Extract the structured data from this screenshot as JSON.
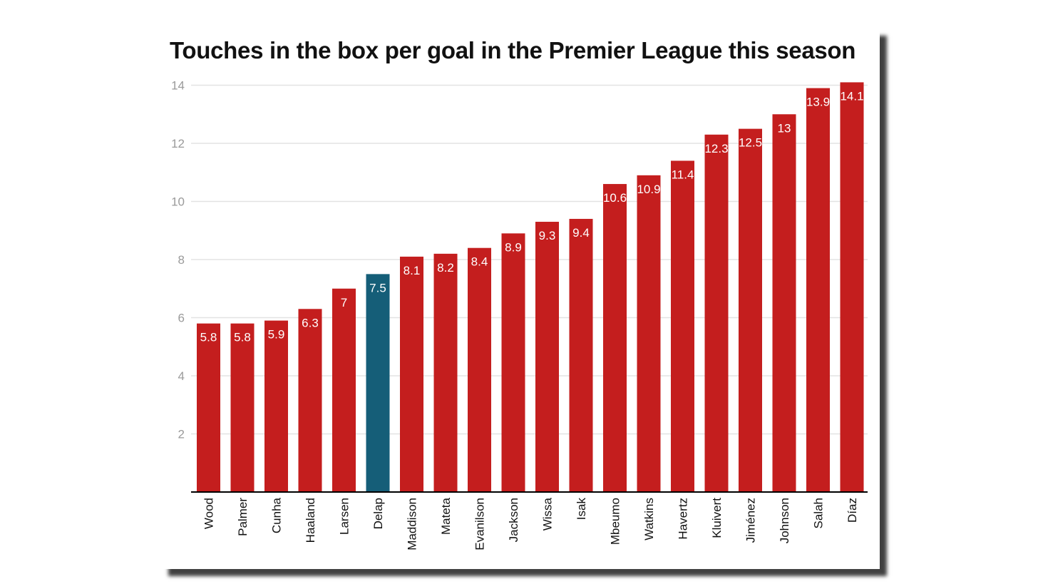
{
  "chart_data": {
    "type": "bar",
    "title": "Touches in the box per goal in the Premier League this season",
    "xlabel": "",
    "ylabel": "",
    "categories": [
      "Wood",
      "Palmer",
      "Cunha",
      "Haaland",
      "Larsen",
      "Delap",
      "Maddison",
      "Mateta",
      "Evanilson",
      "Jackson",
      "Wissa",
      "Isak",
      "Mbeumo",
      "Watkins",
      "Havertz",
      "Kluivert",
      "Jiménez",
      "Johnson",
      "Salah",
      "Díaz"
    ],
    "values": [
      5.8,
      5.8,
      5.9,
      6.3,
      7,
      7.5,
      8.1,
      8.2,
      8.4,
      8.9,
      9.3,
      9.4,
      10.6,
      10.9,
      11.4,
      12.3,
      12.5,
      13,
      13.9,
      14.1
    ],
    "data_labels": [
      "5.8",
      "5.8",
      "5.9",
      "6.3",
      "7",
      "7.5",
      "8.1",
      "8.2",
      "8.4",
      "8.9",
      "9.3",
      "9.4",
      "10.6",
      "10.9",
      "11.4",
      "12.3",
      "12.5",
      "13",
      "13.9",
      "14.1"
    ],
    "highlight": "Delap",
    "y_ticks": [
      2,
      4,
      6,
      8,
      10,
      12,
      14
    ],
    "ylim": [
      0,
      14.1
    ],
    "grid": true,
    "legend": "none",
    "colors": {
      "bar": "#c41e1e",
      "highlight": "#155e78",
      "grid": "#e3e3e3",
      "axis": "#000000"
    }
  }
}
